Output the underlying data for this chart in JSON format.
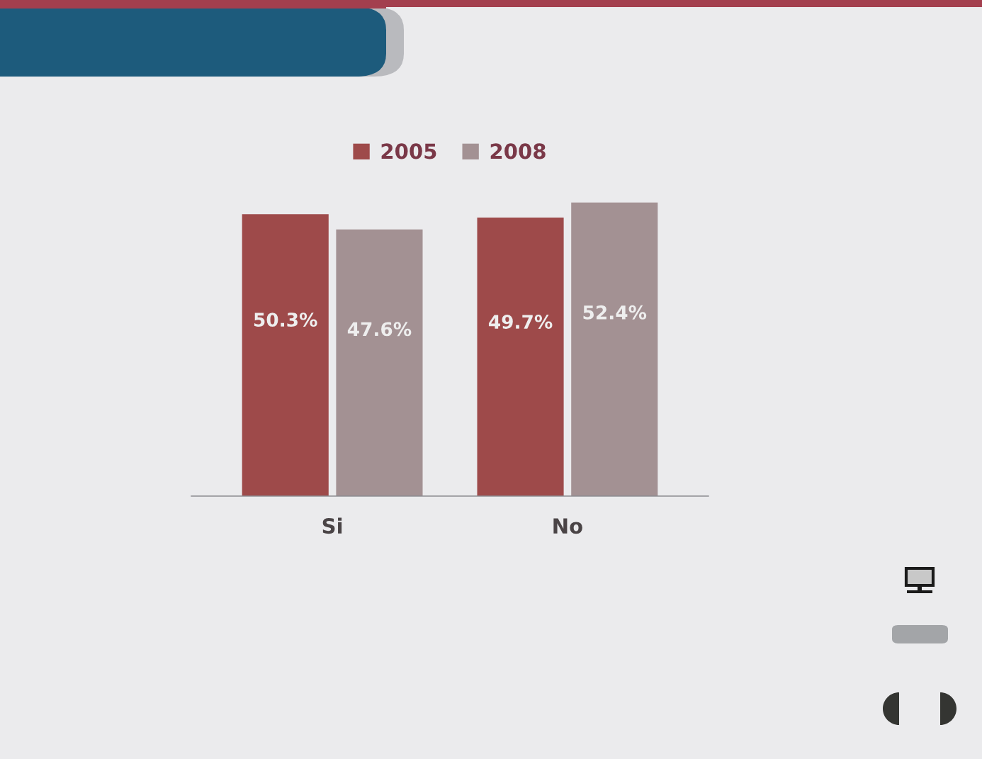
{
  "chart_data": {
    "type": "bar",
    "categories": [
      "Si",
      "No"
    ],
    "series": [
      {
        "name": "2005",
        "color": "#9e4a4a",
        "values": [
          50.3,
          49.7
        ],
        "value_labels": [
          "50.3%",
          "49.7%"
        ]
      },
      {
        "name": "2008",
        "color": "#a39193",
        "values": [
          47.6,
          52.4
        ],
        "value_labels": [
          "47.6%",
          "52.4%"
        ]
      }
    ],
    "legend": "top"
  }
}
